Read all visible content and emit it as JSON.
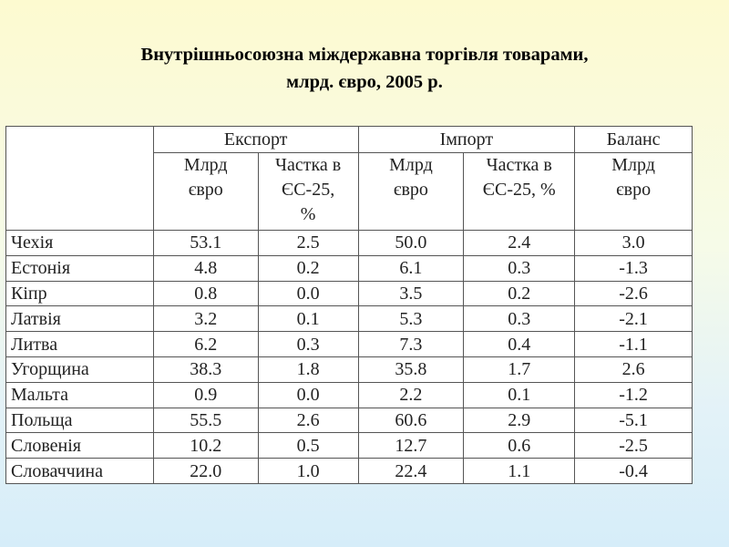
{
  "title": {
    "line1": "Внутрішньосоюзна міждержавна торгівля товарами,",
    "line2": "млрд. євро, 2005 р."
  },
  "table": {
    "groups": [
      "Експорт",
      "Імпорт",
      "Баланс"
    ],
    "subheaders": [
      [
        "Млрд",
        "євро"
      ],
      [
        "Частка в",
        "ЄС-25,",
        "%"
      ],
      [
        "Млрд",
        "євро"
      ],
      [
        "Частка в",
        "ЄС-25, %"
      ],
      [
        "Млрд",
        "євро"
      ]
    ],
    "rows": [
      [
        "Чехія",
        "53.1",
        "2.5",
        "50.0",
        "2.4",
        "3.0"
      ],
      [
        "Естонія",
        "4.8",
        "0.2",
        "6.1",
        "0.3",
        "-1.3"
      ],
      [
        "Кіпр",
        "0.8",
        "0.0",
        "3.5",
        "0.2",
        "-2.6"
      ],
      [
        "Латвія",
        "3.2",
        "0.1",
        "5.3",
        "0.3",
        "-2.1"
      ],
      [
        "Литва",
        "6.2",
        "0.3",
        "7.3",
        "0.4",
        "-1.1"
      ],
      [
        "Угорщина",
        "38.3",
        "1.8",
        "35.8",
        "1.7",
        "2.6"
      ],
      [
        "Мальта",
        "0.9",
        "0.0",
        "2.2",
        "0.1",
        "-1.2"
      ],
      [
        "Польща",
        "55.5",
        "2.6",
        "60.6",
        "2.9",
        "-5.1"
      ],
      [
        "Словенія",
        "10.2",
        "0.5",
        "12.7",
        "0.6",
        "-2.5"
      ],
      [
        "Словаччина",
        "22.0",
        "1.0",
        "22.4",
        "1.1",
        "-0.4"
      ]
    ]
  }
}
